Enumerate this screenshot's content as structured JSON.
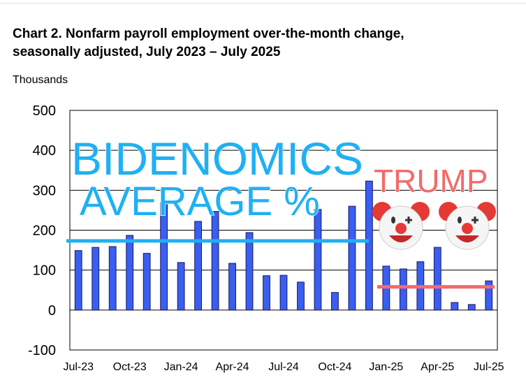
{
  "chart_data": {
    "type": "bar",
    "title": [
      "Chart 2. Nonfarm payroll employment over-the-month change,",
      "seasonally adjusted, July 2023 – July 2025"
    ],
    "y_label": "Thousands",
    "categories": [
      "Jul-23",
      null,
      null,
      "Oct-23",
      null,
      null,
      "Jan-24",
      null,
      null,
      "Apr-24",
      null,
      null,
      "Jul-24",
      null,
      null,
      "Oct-24",
      null,
      null,
      "Jan-25",
      null,
      null,
      "Apr-25",
      null,
      null,
      "Jul-25"
    ],
    "values": [
      149,
      157,
      159,
      187,
      142,
      269,
      119,
      222,
      247,
      117,
      194,
      86,
      87,
      70,
      252,
      44,
      260,
      323,
      110,
      103,
      121,
      157,
      19,
      14,
      73
    ],
    "color": "#3a5ef0",
    "ylim": [
      -100,
      500
    ],
    "yticks": [
      -100,
      0,
      100,
      200,
      300,
      400,
      500
    ],
    "grid": true,
    "reference_lines": [
      {
        "value": 173,
        "color": "#1fb0f5"
      },
      {
        "value": 58,
        "color": "#f26b6b"
      }
    ],
    "annotations": [
      "BIDENOMICS",
      "AVERAGE %",
      "TRUMP"
    ]
  }
}
